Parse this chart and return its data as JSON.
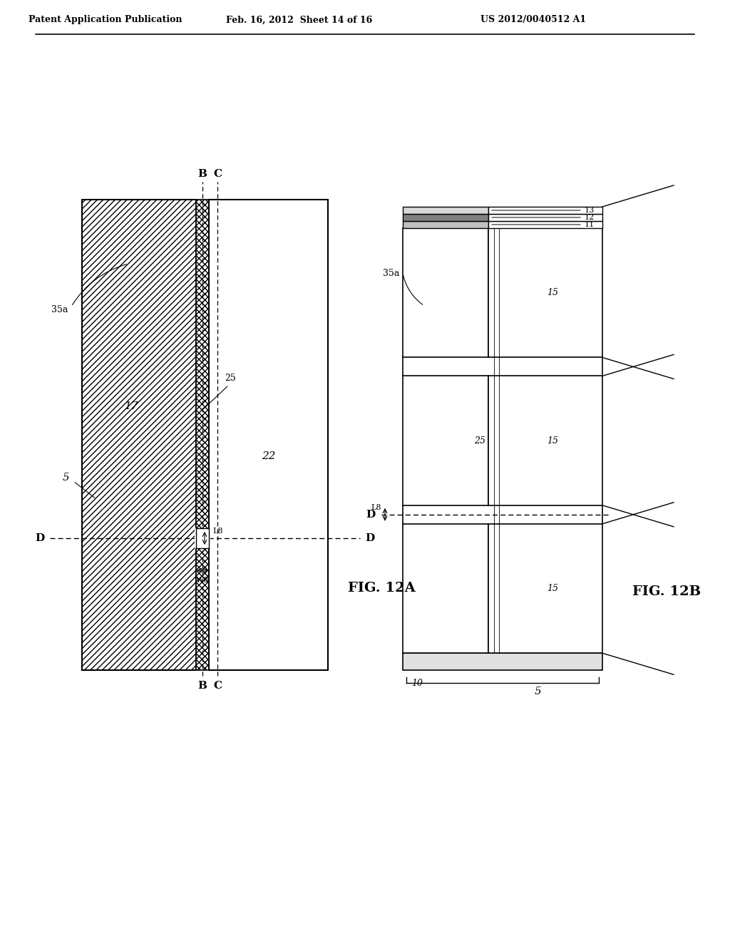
{
  "header_left": "Patent Application Publication",
  "header_mid": "Feb. 16, 2012  Sheet 14 of 16",
  "header_right": "US 2012/0040512 A1",
  "fig12a_label": "FIG. 12A",
  "fig12b_label": "FIG. 12B",
  "bg_color": "#ffffff"
}
